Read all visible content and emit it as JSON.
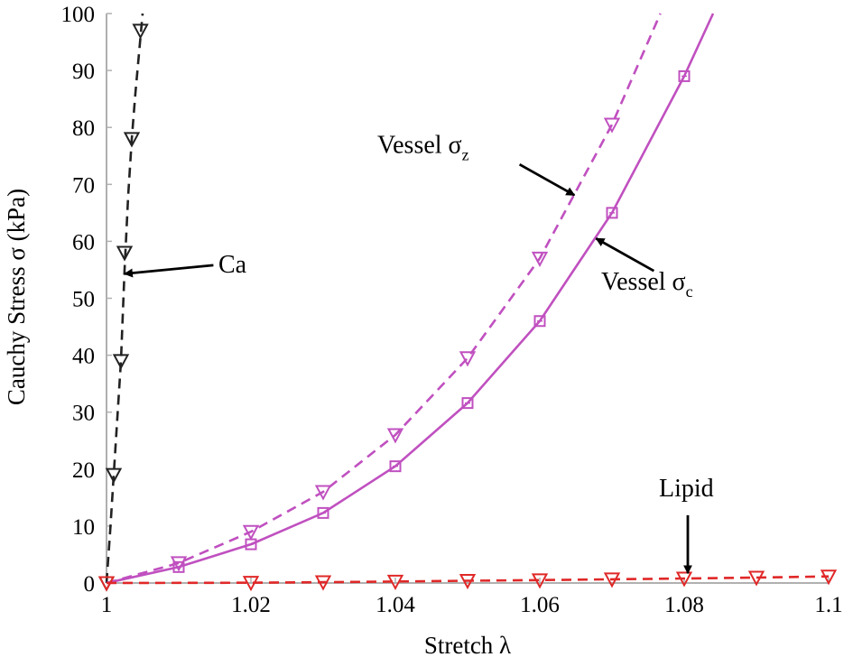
{
  "chart_data": {
    "type": "line",
    "title": "",
    "xlabel": "Stretch λ",
    "ylabel": "Cauchy Stress σ (kPa)",
    "xlim": [
      1,
      1.1
    ],
    "ylim": [
      0,
      100
    ],
    "x_ticks": [
      "1",
      "1.02",
      "1.04",
      "1.06",
      "1.08",
      "1.1"
    ],
    "y_ticks": [
      "0",
      "10",
      "20",
      "30",
      "40",
      "50",
      "60",
      "70",
      "80",
      "90",
      "100"
    ],
    "grid": false,
    "colors": {
      "ca": "#222222",
      "vessel": "#c050c0",
      "lipid": "#e02828",
      "axis": "#b0b0b0"
    },
    "series": [
      {
        "name": "Ca",
        "style": "dashed",
        "marker": "triangle-down",
        "color": "#222222",
        "x": [
          1.0,
          1.001,
          1.002,
          1.0025,
          1.0035,
          1.0047
        ],
        "y": [
          0,
          19,
          39,
          58,
          78,
          97
        ],
        "curve_x": [
          1.0,
          1.0005,
          1.001,
          1.0015,
          1.002,
          1.0025,
          1.003,
          1.0035,
          1.004,
          1.0045,
          1.005
        ],
        "curve_y": [
          0,
          9,
          19,
          29,
          39,
          55,
          68,
          78,
          86,
          93,
          100
        ]
      },
      {
        "name": "Vessel σz",
        "style": "dashed",
        "marker": "triangle-down",
        "color": "#c050c0",
        "x": [
          1.01,
          1.02,
          1.03,
          1.04,
          1.05,
          1.06,
          1.07
        ],
        "y": [
          3.5,
          9,
          16,
          26,
          39.5,
          57,
          80.5
        ],
        "curve_x": [
          1.0,
          1.01,
          1.02,
          1.03,
          1.04,
          1.05,
          1.06,
          1.07,
          1.0767
        ],
        "curve_y": [
          0,
          3.5,
          9,
          16,
          26,
          39.5,
          57,
          80.5,
          100
        ]
      },
      {
        "name": "Vessel σc",
        "style": "solid",
        "marker": "square",
        "color": "#c050c0",
        "x": [
          1.01,
          1.02,
          1.03,
          1.04,
          1.05,
          1.06,
          1.07,
          1.08
        ],
        "y": [
          2.8,
          6.8,
          12.3,
          20.5,
          31.6,
          46,
          65,
          89
        ],
        "curve_x": [
          1.0,
          1.01,
          1.02,
          1.03,
          1.04,
          1.05,
          1.06,
          1.07,
          1.08,
          1.084
        ],
        "curve_y": [
          0,
          2.8,
          6.8,
          12.3,
          20.5,
          31.6,
          46,
          65,
          89,
          100
        ]
      },
      {
        "name": "Lipid",
        "style": "dashed",
        "marker": "triangle-down",
        "color": "#e02828",
        "x": [
          1.0,
          1.02,
          1.03,
          1.04,
          1.05,
          1.06,
          1.07,
          1.08,
          1.09,
          1.1
        ],
        "y": [
          0,
          0.05,
          0.15,
          0.25,
          0.4,
          0.5,
          0.65,
          0.8,
          0.95,
          1.15
        ],
        "curve_x": [
          1.0,
          1.02,
          1.03,
          1.04,
          1.05,
          1.06,
          1.07,
          1.08,
          1.09,
          1.1
        ],
        "curve_y": [
          0,
          0.05,
          0.15,
          0.25,
          0.4,
          0.5,
          0.65,
          0.8,
          0.95,
          1.15
        ]
      }
    ],
    "annotations": [
      {
        "id": "ca",
        "text": "Ca",
        "sub": "",
        "text_at": [
          1.0155,
          54.5
        ],
        "arrow_from": [
          1.0148,
          55.8
        ],
        "arrow_to": [
          1.0025,
          54.3
        ]
      },
      {
        "id": "vessel-sz",
        "text": "Vessel  σ",
        "sub": "z",
        "text_at": [
          1.0375,
          75.5
        ],
        "arrow_from": [
          1.0572,
          73.5
        ],
        "arrow_to": [
          1.0648,
          68.1
        ]
      },
      {
        "id": "vessel-sc",
        "text": "Vessel σ",
        "sub": "c",
        "text_at": [
          1.0685,
          51.5
        ],
        "arrow_from": [
          1.0758,
          54.8
        ],
        "arrow_to": [
          1.0678,
          60.5
        ]
      },
      {
        "id": "lipid",
        "text": "Lipid",
        "sub": "",
        "text_at": [
          1.0765,
          15.2
        ],
        "arrow_from": [
          1.0805,
          11.9
        ],
        "arrow_to": [
          1.0805,
          1.7
        ]
      }
    ]
  }
}
